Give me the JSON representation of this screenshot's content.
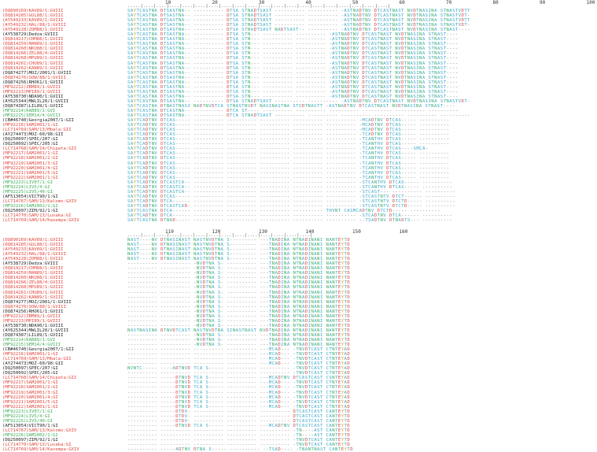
{
  "block1": {
    "ruler_numbers": [
      "10",
      "20",
      "30",
      "40",
      "50",
      "60",
      "70",
      "80",
      "90",
      "100"
    ],
    "ruler_ticks": ".....|....|....|....|....|....|....|....|....|....|....|....|....|....|....|....|....|....|....|....|",
    "rows": [
      {
        "label": "(DQ890169)KAV89/1:GVIII",
        "color": "red",
        "seq": "SAYTCASTNA DTSASTNA-- ---------- DTSA STNADTSAST ---------- ---------- -ASTNADTNV DTCASTNAST NVDTNASINA STNASTVDTT"
      },
      {
        "label": "(DQ814285)GUL88/1:GVIII",
        "color": "red",
        "seq": "SAYTCASTNA DTSASTNA-- ---------- DTSA STNADTSAST ---------- ---------- -ASTNADTNV DTCASTNAST NVDTNASINA STNASTVDT-"
      },
      {
        "label": "(AY549233)KAV89/1:GVIII",
        "color": "red",
        "seq": "SAYTCASTNA DTSASTNA-- ---------- DTSA STNADTSAST ---------- ---------- -ASTNADTNV DTCASTNAST NVDTNASINA STNASTVDTT"
      },
      {
        "label": "(AY549232)HAL/88/1:GVIII",
        "color": "red",
        "seq": "SAYTCASTNA DTSASTNA-- ---------- DTSA STNADTSAST ---------- ---------- -ASTNADTNV DTCASTNAST NVDTNASINA STNASTVDT-"
      },
      {
        "label": "(AY549228)ZOM88/1:GVIII",
        "color": "red",
        "seq": "SAYTCASTNA DTSASTNA-- ---------- DTSA STNADTSAST NADTSAST-- ---------- -ASTNADTNV DTCASTNAST NVDTNASINA STNAST----"
      },
      {
        "label": "(AY538729)Dedza:GVIII",
        "color": "black",
        "seq": "SAYTCASTNA DTSASTNA-- ---------- DTSA STN--- ---------- ---------- -ASTNADTNV DTCASTNAST NVDTNASINA STNAST----"
      },
      {
        "label": "(DQ814217)CHM88/1:GVIII",
        "color": "red",
        "seq": "SAYTCASTNA DTSASTNA-- ---------- DTSA STN--- ---------- ---------- -ASTNADTNV DTCASTNAST NVDTNASINA STNAST----"
      },
      {
        "label": "(DQ814259)MAN89/1:GVIII",
        "color": "red",
        "seq": "SAYTCASTNA DTSASTNA-- ---------- DTSA STN--- ---------- ---------- -ASTNADTNV DTCASTNAST NVDTNASINA STNAST----"
      },
      {
        "label": "(DQ814260)NKU88/1:GVIII",
        "color": "red",
        "seq": "SAYTCASTNA DTSASTNA-- ---------- DTSA STN--- ---------- ---------- -ASTNADTNV DTCASTNAST NVDTNASINA STNAST----"
      },
      {
        "label": "(DQ814266)ZEL88/4:GVIII",
        "color": "red",
        "seq": "SAYTCASTNA DTSASTNA-- ---------- DTSA STN--- ---------- ---------- -ASTNADTNV DTCASTNAST NVDTNASINA STNAST----"
      },
      {
        "label": "(DQ814268)MPU89/1:GVIII",
        "color": "red",
        "seq": "SAYTCASTNA DTSASTNA-- ---------- DTSA STN--- ---------- ---------- -ASTNADTNV DTCASTNAST NVDTNASINA STNAST----"
      },
      {
        "label": "(DQ814261)CHU89/1:GVIII",
        "color": "red",
        "seq": "SAYTCASTNA DTSASTNA-- ---------- DTSA STN--- ---------- ---------- -ASTNADTNV DTCASTNAST NVDTNASINA STNAST----"
      },
      {
        "label": "(DQ814262)KAN89/1:GVIII",
        "color": "red",
        "seq": "SAYTCASTNA DTSASTNA-- ---------- DTSA STN--- ---------- ---------- -ASTNADTNV DTCASTNAST NVDTNASINA STNAST----"
      },
      {
        "label": "(DQ874277)MOZ/2001/1:GVIII",
        "color": "black",
        "seq": "SAYTCASTNA DTSASTNA-- ---------- DTSA STN--- ---------- ---------- -ASTNADTNV DTCASTNAST NVDTNASINA STNAST----"
      },
      {
        "label": "(DQ874276)SOW/88/1:GVIII",
        "color": "red",
        "seq": "SAYTCASTNA DTSASTNA-- ---------- DTSA STN--- ---------- ---------- -ASTNADTNV DTCASTNAST NVDTNASINA STNAST----"
      },
      {
        "label": "(DQ874256)RHO61/1:GVIII",
        "color": "black",
        "seq": "SAYTCASTNA DTSASTNA-- ---------- DTSA STN--- ---------- ---------- -ASTNADTNV DTCASTNAST NVDTNASINA STNAST----"
      },
      {
        "label": "(MF92212)ZBM89/1:GVIII",
        "color": "red",
        "seq": "SAYTCASTNA DTSASTNA-- ---------- DTSA STN--- ---------- ---------- -ASTNADTNV DTCASTNAST NVDTNASINA STNAST----"
      },
      {
        "label": "(MF92213)MPI89/1:GVIII",
        "color": "red",
        "seq": "SAYTCASTNA DTSASTNA-- ---------- DTSA STN--- ---------- ---------- -ASTNADTNV DTCASTNAST NVDTNASINA STNAST----"
      },
      {
        "label": "(AY538730)NDA90/1:GVIII",
        "color": "black",
        "seq": "SAYTCASTNA DTSASTNA-- ---------- DTSA STN--- ---------- ---------- -ASTNADTNV DTCASTNAST NVDTNASINA STNAST----"
      },
      {
        "label": "(AY625344)MWLIL20/1:GVIII",
        "color": "black",
        "seq": "SAYTCASTNA DTSASTNA-- ---------- DTSA STNADTSAST ---------- ---------- -ASTNADTNV DTCASTNAST NVDTNASINA STNASTVDT-"
      },
      {
        "label": "(DQ874387)LIL89/1:GVIII",
        "color": "black",
        "seq": "SAYTCASTNA DTNASTNASI NADTNVDTCA STNASTNVDT NASINASTNA STVDTNASTT -ASTNADTNV DTCASTNAST NVDTNASINA STNAST----"
      },
      {
        "label": "(MF92214)KAB89/1:GVI",
        "color": "green",
        "seq": "SAYTCASTNA DTCASTNA-- ---------- DTCA ST---- ---------- ---------- ---------- ---------- ---------- ----------"
      },
      {
        "label": "(MF92215)SEM14/4:GVIII",
        "color": "green",
        "seq": "SAYTCASTNA DTSASTNA-- ---------- DTCA STNADTSAST ---------- ---------- ---------- ---------- ---------- ----------"
      },
      {
        "label": "(CB#46740)Georgia2007/1:GII",
        "color": "black",
        "seq": "SAYTCADTNV DTCAS----- ---------- ---------- ---------- ---------- ---------- -MCADTNV DTCAS----- ----------"
      },
      {
        "label": "(MF92216)SAM2001/1:GI",
        "color": "red",
        "seq": "SAYTCADTNV DTCAS----- ---------- ---------- ---------- ---------- ---------- -MCADTNV DTCAS----- ----------"
      },
      {
        "label": "(LC714769)SAM/13/Mbala:GII",
        "color": "red",
        "seq": "SAYTCADTNV DTCAS----- ---------- ---------- ---------- ---------- ---------- -MCADTNV DTCAS----- ----------"
      },
      {
        "label": "(AY274473)MOZ-60/98:GII",
        "color": "black",
        "seq": "SAYTCADTNV DTCAS----- ---------- ---------- ---------- ---------- ---------- -TCADTNV DTCAS----- ----------"
      },
      {
        "label": "(DQ250097)SPEC/207:GI",
        "color": "black",
        "seq": "SAYTCADTNV DTCAS----- ---------- ---------- ---------- ---------- ---------- -TCANTHV DTCAS----- ----------"
      },
      {
        "label": "(DQ250092)SPEC/205:GI",
        "color": "black",
        "seq": "SAYTCADTNV DTCAS----- ---------- ---------- ---------- ---------- ---------- -TCANTHV DTCAS----- ----------"
      },
      {
        "label": "(LC714768)SAM/14/Chipata:GII",
        "color": "red",
        "seq": "SAYTCADTNV DTCAS----- ---------- ---------- ---------- ---------- ---------- -TCANTHV DTCAS----SMCA-"
      },
      {
        "label": "(MF92217)SAM2001/1:GI",
        "color": "red",
        "seq": "SAYTCADTNV DTCAS----- ---------- ---------- ---------- ---------- ---------- -TCANTHV DTCAS----- ----------"
      },
      {
        "label": "(MF92218)SAM2001/2:GI",
        "color": "red",
        "seq": "SAYTCADTNV DTCAS----- ---------- ---------- ---------- ---------- ---------- -TCANTHV DTCAS----- ----------"
      },
      {
        "label": "(MF92219)SAM2001/3:GI",
        "color": "red",
        "seq": "SAYTCADTNV DTCAS----- ---------- ---------- ---------- ---------- ---------- -TCANTHV DTCAS----- ----------"
      },
      {
        "label": "(MF92220)SAM2001/4:GI",
        "color": "red",
        "seq": "SAYTCADTNV DTCAS----- ---------- ---------- ---------- ---------- ---------- -TCANTHV DTCAS----- ----------"
      },
      {
        "label": "(MF92221)SAM2001/5:GI",
        "color": "red",
        "seq": "SAYTCADTNV DTCAS----- ---------- ---------- ---------- ---------- ---------- -TCANTHV DTCAS----- ----------"
      },
      {
        "label": "(MF92222)SAM2001/1:GI",
        "color": "red",
        "seq": "SAYTCADTNV DTCAS----- ---------- ---------- ---------- ---------- ---------- -TCANTHV DTCAS----- ----------"
      },
      {
        "label": "(MF92223)LIV07/1:GI",
        "color": "green",
        "seq": "SAYTCADTNV DTCASTCA-- ---------- ---------- ---------- ---------- ---------- -STCANTHV DTCAS----- ----------"
      },
      {
        "label": "(MF92224)LIV5/4:GI",
        "color": "green",
        "seq": "SAYTCADTNV DTCASTCA-- ---------- ---------- ---------- ---------- ---------- -STCANTHV DTCAS----- ----------"
      },
      {
        "label": "(MF92225)LIV5/40:GI",
        "color": "green",
        "seq": "SAYTCADTNV DTCASTCA-- ---------- ---------- ---------- ---------- ---------- -STCAST--- ---------- ----------"
      },
      {
        "label": "(AF513054)VICT90/1:GI",
        "color": "black",
        "seq": "SAYTCADTNV DTCAS----- ---------- ---------- ---------- ---------- ---------- -STCASTNTV DTCT------ ----------"
      },
      {
        "label": "(LC714767)SAM/13/Kalomo:GXIV",
        "color": "red",
        "seq": "SAYTCADTNV DTCA------ ---------- ---------- ---------- ---------- ---------- -STCASTNTV DTCTD----- ----------"
      },
      {
        "label": "(MF92226)SAM2002/1:GI",
        "color": "green",
        "seq": "SAYTCADTNV DTCASTCAD- ---------- ---------- ---------- ---------- ---------- -STCASTNTV DTCTD----- ----------"
      },
      {
        "label": "(DQ250097)ZIM/92/1:GI",
        "color": "black",
        "seq": "SAYTCASTNA DTCA------ ---------- ---------- ---------- ---------- THVNT CASMCADTNV DTCTD----- ----------"
      },
      {
        "label": "(LC714770)SAM/13/Lusaka:GI",
        "color": "red",
        "seq": "SAYTCADTNV DTCA------ ---------- ---------- ---------- ---------- ---------- -STCADTNV DTCA------ ----------"
      },
      {
        "label": "(LC714769)SAM/14/Kasempa:GXIV",
        "color": "red",
        "seq": "SAYTCASTNA DTNAD----- ---------- ---------- ---------- ---------- ---------- --TSADTNV DTNADTS--- ----------"
      }
    ]
  },
  "block2": {
    "ruler_numbers": [
      "110",
      "120",
      "130",
      "140",
      "150",
      "160"
    ],
    "ruler_ticks": ".....|....|....|....|....|....|....|....|....|....|....|....|....|....|",
    "rows": [
      {
        "label": "(DQ890169)KAV89/1:GVIII",
        "color": "red",
        "seq": "NAST----NV DTNASINAST NASTNVDTNA S--------- ---TNADINA NTNADINANI NANTEYTD"
      },
      {
        "label": "(DQ814285)GUL88/1:GVIII",
        "color": "red",
        "seq": "NAST----NV DTNASINAST NASTNVDTNA S--------- ---TNADINA NTNADINANI NANTEYTD"
      },
      {
        "label": "(AY549233)KAV89/1:GVIII",
        "color": "red",
        "seq": "NAST----NV DTNASINAST NASTNVDTNA S--------- ---TNADINA NTNADINANI NANTEYTD"
      },
      {
        "label": "(AY549232)HAL/88/1:GVIII",
        "color": "red",
        "seq": "NAST----NV DTNASINAST NASTNVDTNA S--------- ---TNADINA NTNADINANI NANTEYTD"
      },
      {
        "label": "(AY549228)ZOM88/1:GVIII",
        "color": "red",
        "seq": "NAST----NV DTNASINAST NASTNVDTNA S--------- ---TNADINA NTNADINANI NANTEYTD"
      },
      {
        "label": "(AY538729)Dedza:GVIII",
        "color": "black",
        "seq": "---------- ---------- -NVDTNA S- ---------- ---TNADINA NTNADINANI NANTEYTD"
      },
      {
        "label": "(DQ814217)CHM88/1:GVIII",
        "color": "red",
        "seq": "---------- ---------- -NVDTNA S- ---------- ---TNADINA NTNADINANI NANTEYTD"
      },
      {
        "label": "(DQ814259)MAN89/1:GVIII",
        "color": "red",
        "seq": "---------- ---------- -NVDTNA S- ---------- ---TNADINA NTNADINANI NANTEYTD"
      },
      {
        "label": "(DQ814260)NKU88/1:GVIII",
        "color": "red",
        "seq": "---------- ---------- -NVDTNA S- ---------- ---TNADINA NTNADINANI NANTEYTD"
      },
      {
        "label": "(DQ814266)ZEL88/4:GVIII",
        "color": "red",
        "seq": "---------- ---------- -NVDTNA S- ---------- ---TNADINA NTNADINANI NANTEYTD"
      },
      {
        "label": "(DQ814268)MPU89/1:GVIII",
        "color": "red",
        "seq": "---------- ---------- -NVDTNA S- ---------- ---TNADINA NTNADINANI NANTEYTD"
      },
      {
        "label": "(DQ814261)CHU89/1:GVIII",
        "color": "red",
        "seq": "---------- ---------- -NVDTNA S- ---------- ---TNADINA NTNADINANI NANTEYTD"
      },
      {
        "label": "(DQ814262)KAN89/1:GVIII",
        "color": "red",
        "seq": "---------- ---------- -NVDTNA S- ---------- ---TNADINA NTNADINANI NANTEYTD"
      },
      {
        "label": "(DQ874277)MOZ/2001/1:GVIII",
        "color": "black",
        "seq": "---------- ---------- -NVDTNA S- ---------- ---TNADINA NTNADINANI NANTEYTD"
      },
      {
        "label": "(DQ874276)SOW/88/1:GVIII",
        "color": "red",
        "seq": "---------- ---------- -NVDTNA S- ---------- ---TNADINA NTNADINANI NANTEYTD"
      },
      {
        "label": "(DQ874256)RHO61/1:GVIII",
        "color": "black",
        "seq": "---------- ---------- -NVDTNA S- ---------- ---TNADINA NTNADINANI NANTEYTD"
      },
      {
        "label": "(MF92212)ZBM89/1:GVIII",
        "color": "red",
        "seq": "---------- ---------- -NVDTNA S- ---------- ---TNADINA NTNADINANI NANTEYTD"
      },
      {
        "label": "(MF92213)MPI89/1:GVIII",
        "color": "red",
        "seq": "---------- ---------- -NVDTNA S- ---------- ---TNADINA NTNADINANI NANTEYTD"
      },
      {
        "label": "(AY538730)NDA90/1:GVIII",
        "color": "black",
        "seq": "---------- ---------- -NVDTNA S- ---------- ---TNADINA NTNADINANI NANTEYTD"
      },
      {
        "label": "(AY625344)MWLIL20/1:GVIII",
        "color": "black",
        "seq": "NASTNASINA DTNVDTCAST NASTNVDTNA SINASTNAST NVDTNADINA NTNADINANI NANTEYTD"
      },
      {
        "label": "(DQ874387)LIL89/1:GVIII",
        "color": "black",
        "seq": "---------- ---------- -NVDTNA S- ---------- ---TNADINA NTNADINANI NANTEYTD"
      },
      {
        "label": "(MF92214)KAB89/1:GVI",
        "color": "green",
        "seq": "---------- ---------- -NVDTNA S- ---------- ---TNADINA NTNADINANI NANTEYTD"
      },
      {
        "label": "(MF92215)SEM14/4:GVIII",
        "color": "green",
        "seq": "---------- ---------- -NVDTNA S- ---------- ---TNADINA NTNADINANI NANTEYTD"
      },
      {
        "label": "(CB#46740)Georgia2007/1:GII",
        "color": "black",
        "seq": "---------- ---------- ---------- ---------- ---MCAD--- -TNVDTCAST CTNTEYAD"
      },
      {
        "label": "(MF92216)SAM2001/1:GI",
        "color": "red",
        "seq": "---------- ---------- ---------- ---------- ---MCAD--- -TNVDTCAST CTNTEYAD"
      },
      {
        "label": "(LC714769)SAM/13/Mbala:GII",
        "color": "red",
        "seq": "---------- ---------- ---------- ---------- ---MCAD--- -TNVDTCAST CTNTEYAD"
      },
      {
        "label": "(AY274473)MOZ-60/98:GII",
        "color": "black",
        "seq": "---------- ---------- ---------- ---------- ---MCAD--- -TNVDTCAST CTNTEYAD"
      },
      {
        "label": "(DQ250097)SPEC/207:GI",
        "color": "black",
        "seq": "NVNTC----- ----ADTNVD TCA S----- ---------- ---------- -TNVDTCAST CTNTEYAD"
      },
      {
        "label": "(DQ250092)SPEC/205:GI",
        "color": "black",
        "seq": "---------- ---------- ---------- ---------- ---------- -TNVDTCAST CTNTEYAD"
      },
      {
        "label": "(LC714768)SAM/14/Chipata:GII",
        "color": "red",
        "seq": "---------- -----DTNVD TCA S----- ---------- ---MCADTNV DTCASTCAST CSNTEYAD"
      },
      {
        "label": "(MF92217)SAM2001/1:GI",
        "color": "red",
        "seq": "---------- -----DTNVD TCA S----- ---------- ---MCAD--- -TNVDTCAST CTNTEYAD"
      },
      {
        "label": "(MF92218)SAM2001/2:GI",
        "color": "red",
        "seq": "---------- -----DTNVD TCA S----- ---------- ---MCAD--- -TNVDTCAST CTNTEYAD"
      },
      {
        "label": "(MF92219)SAM2001/3:GI",
        "color": "red",
        "seq": "---------- -----DTNVD TCA S----- ---------- ---MCAD--- -TNVDTCAST CTNTEYAD"
      },
      {
        "label": "(MF92220)SAM2001/4:GI",
        "color": "red",
        "seq": "---------- -----DTNVD TCA S----- ---------- ---MCAD--- -TNVDTCAST CTNTEYAD"
      },
      {
        "label": "(MF92221)SAM2001/5:GI",
        "color": "red",
        "seq": "---------- -----DTNVD TCA S----- ---------- ---MCAD--- -TNVDTCAST CTNTEYAD"
      },
      {
        "label": "(MF92222)SAM2001/1:GI",
        "color": "red",
        "seq": "---------- -----DTNVD TCA S----- ---------- ---MCAD--- -TNVDTCAST CTNTEYAD"
      },
      {
        "label": "(MF92223)LIV07/1:GI",
        "color": "green",
        "seq": "---------- -----DTDV- ---------- ---------- ---------- DTCASTCAST CANTEYTD"
      },
      {
        "label": "(MF92224)LIV5/4:GI",
        "color": "green",
        "seq": "---------- -----DTDV- ---------- ---------- ---------- DTCASTCAST CANTEYTD"
      },
      {
        "label": "(MF92225)LIV5/40:GI",
        "color": "green",
        "seq": "---------- -----DTDV- ---------- ---------- ---------- DTCASTCAST CANTEYTD"
      },
      {
        "label": "(AF513054)VICT90/1:GI",
        "color": "black",
        "seq": "---------- -----DTNVD TCA S----- ---------- ---MCADTNV DTCASTCAST CANTEYTD"
      },
      {
        "label": "(LC714767)SAM/13/Kalomo:GXIV",
        "color": "red",
        "seq": "---------- ---------- ---------- ---------- ---------- -TN----AST CANTEYTD"
      },
      {
        "label": "(MF92226)SAM2002/1:GI",
        "color": "green",
        "seq": "---------- ---------- ---------- ---------- ---------- -TN----AST CANTEYTD"
      },
      {
        "label": "(DQ250097)ZIM/92/1:GI",
        "color": "black",
        "seq": "---------- ---------- ---------- ---------- ---------- -TNVDTCAST CANTEYTD"
      },
      {
        "label": "(LC714770)SAM/13/Lusaka:GI",
        "color": "red",
        "seq": "---------- ---------- ---------- ---------- ---------- -TNVDTCAST CANTEYTD"
      },
      {
        "label": "(LC714769)SAM/14/Kasempa:GXIV",
        "color": "red",
        "seq": "---------- -----ADTNV DTNA S----- ---------- --TSAD---- -TNANTNAST CANTEYTD"
      }
    ]
  }
}
